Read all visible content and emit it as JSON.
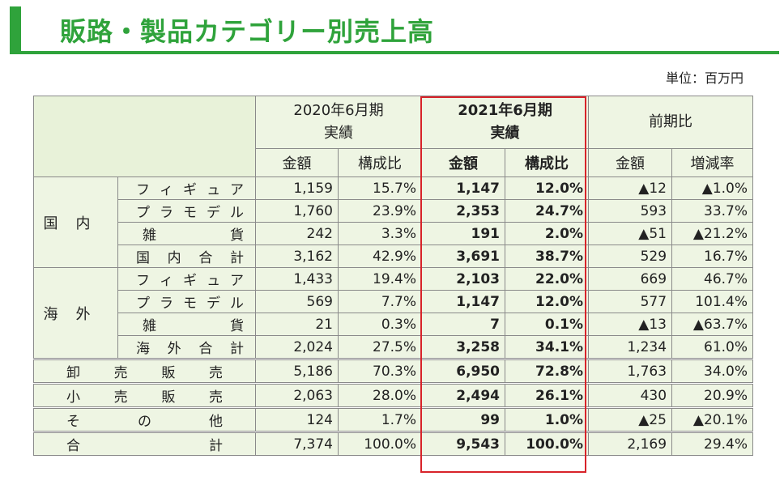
{
  "title": "販路・製品カテゴリー別売上高",
  "unit": "単位：百万円",
  "headers": {
    "period1": "2020年6月期",
    "period1_sub": "実績",
    "period2": "2021年6月期",
    "period2_sub": "実績",
    "comparison": "前期比",
    "amount": "金額",
    "ratio": "構成比",
    "change_rate": "増減率"
  },
  "groups": {
    "domestic": "国内",
    "overseas": "海外"
  },
  "rows": [
    {
      "label": "フィギュア",
      "a1": "1,159",
      "r1": "15.7%",
      "a2": "1,147",
      "r2": "12.0%",
      "ca": "▲12",
      "cr": "▲1.0%"
    },
    {
      "label": "プラモデル",
      "a1": "1,760",
      "r1": "23.9%",
      "a2": "2,353",
      "r2": "24.7%",
      "ca": "593",
      "cr": "33.7%"
    },
    {
      "label": "雑貨",
      "a1": "242",
      "r1": "3.3%",
      "a2": "191",
      "r2": "2.0%",
      "ca": "▲51",
      "cr": "▲21.2%"
    },
    {
      "label": "国内合計",
      "a1": "3,162",
      "r1": "42.9%",
      "a2": "3,691",
      "r2": "38.7%",
      "ca": "529",
      "cr": "16.7%"
    },
    {
      "label": "フィギュア",
      "a1": "1,433",
      "r1": "19.4%",
      "a2": "2,103",
      "r2": "22.0%",
      "ca": "669",
      "cr": "46.7%"
    },
    {
      "label": "プラモデル",
      "a1": "569",
      "r1": "7.7%",
      "a2": "1,147",
      "r2": "12.0%",
      "ca": "577",
      "cr": "101.4%"
    },
    {
      "label": "雑貨",
      "a1": "21",
      "r1": "0.3%",
      "a2": "7",
      "r2": "0.1%",
      "ca": "▲13",
      "cr": "▲63.7%"
    },
    {
      "label": "海外合計",
      "a1": "2,024",
      "r1": "27.5%",
      "a2": "3,258",
      "r2": "34.1%",
      "ca": "1,234",
      "cr": "61.0%"
    },
    {
      "label": "卸売販売",
      "a1": "5,186",
      "r1": "70.3%",
      "a2": "6,950",
      "r2": "72.8%",
      "ca": "1,763",
      "cr": "34.0%"
    },
    {
      "label": "小売販売",
      "a1": "2,063",
      "r1": "28.0%",
      "a2": "2,494",
      "r2": "26.1%",
      "ca": "430",
      "cr": "20.9%"
    },
    {
      "label": "その他",
      "a1": "124",
      "r1": "1.7%",
      "a2": "99",
      "r2": "1.0%",
      "ca": "▲25",
      "cr": "▲20.1%"
    },
    {
      "label": "合計",
      "a1": "7,374",
      "r1": "100.0%",
      "a2": "9,543",
      "r2": "100.0%",
      "ca": "2,169",
      "cr": "29.4%"
    }
  ],
  "colors": {
    "accent": "#2fa33b",
    "highlight_border": "#d8232a",
    "cell_background": "#eef5e3"
  }
}
